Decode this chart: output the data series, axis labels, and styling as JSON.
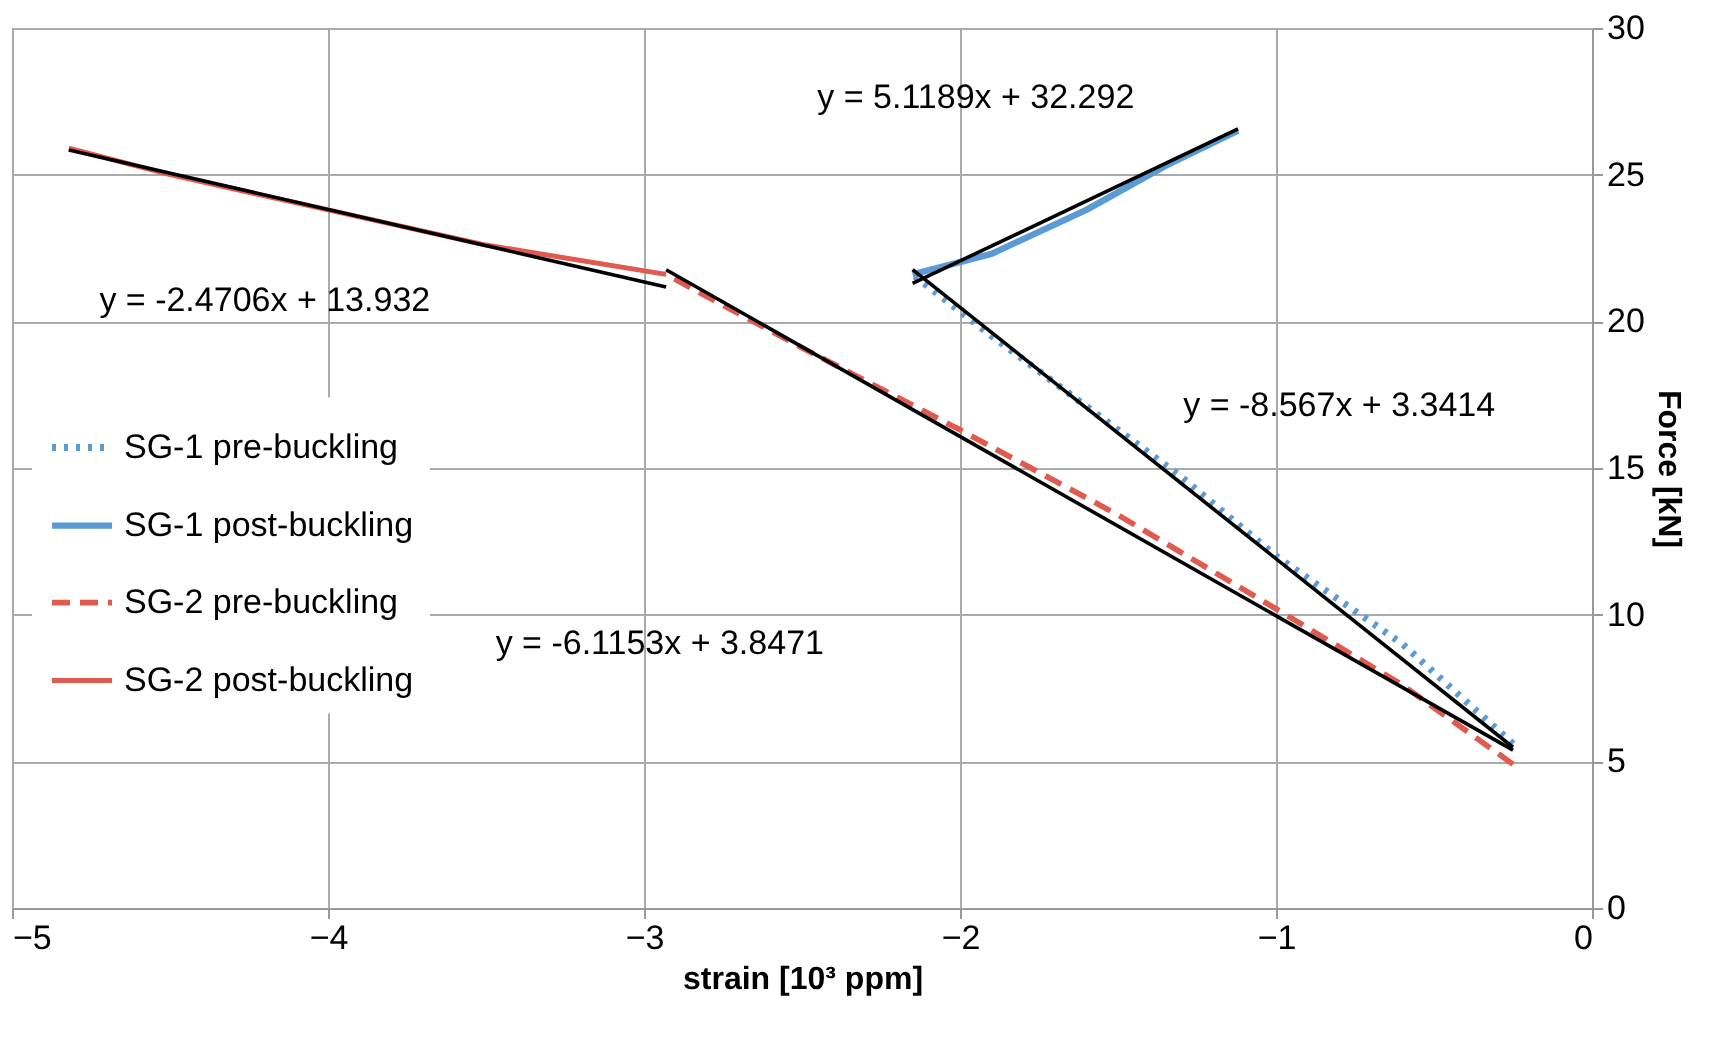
{
  "chart_data": {
    "type": "line",
    "xlabel": "strain [10³ ppm]",
    "ylabel": "Force [kN]",
    "xlim": [
      -5,
      0
    ],
    "xticks": [
      -5,
      -4,
      -3,
      -2,
      -1,
      0
    ],
    "ylim": [
      0,
      30
    ],
    "yticks": [
      0,
      5,
      10,
      15,
      20,
      25,
      30
    ],
    "grid": true,
    "legend": "left",
    "marker": "none",
    "series": [
      {
        "name": "SG-1 pre-buckling",
        "color": "#5b9bd5",
        "line_style": "dotted",
        "x": [
          -0.25,
          -0.6,
          -1.0,
          -1.3,
          -1.6,
          -1.9,
          -2.15
        ],
        "values": [
          5.6,
          9.0,
          12.0,
          14.7,
          17.1,
          19.5,
          21.6
        ]
      },
      {
        "name": "SG-1 post-buckling",
        "color": "#5b9bd5",
        "line_style": "solid",
        "x": [
          -2.15,
          -1.9,
          -1.6,
          -1.35,
          -1.12
        ],
        "values": [
          21.6,
          22.3,
          23.8,
          25.3,
          26.5
        ]
      },
      {
        "name": "SG-2 pre-buckling",
        "color": "#e05a50",
        "line_style": "dashed",
        "x": [
          -0.25,
          -0.6,
          -1.0,
          -1.5,
          -2.0,
          -2.5,
          -2.93
        ],
        "values": [
          4.9,
          7.6,
          10.2,
          13.4,
          16.3,
          19.1,
          21.6
        ]
      },
      {
        "name": "SG-2 post-buckling",
        "color": "#e05a50",
        "line_style": "solid",
        "x": [
          -2.93,
          -3.5,
          -4.0,
          -4.5,
          -4.82
        ],
        "values": [
          21.6,
          22.6,
          23.8,
          25.0,
          25.9
        ]
      },
      {
        "type": "line",
        "color": "#000000",
        "line_style": "solid",
        "x": [
          -4.82,
          -2.93
        ],
        "values": [
          25.84,
          21.17
        ]
      },
      {
        "type": "line",
        "color": "#000000",
        "line_style": "solid",
        "x": [
          -2.15,
          -1.12
        ],
        "values": [
          21.29,
          26.56
        ]
      },
      {
        "type": "line",
        "color": "#000000",
        "line_style": "solid",
        "x": [
          -2.15,
          -0.25
        ],
        "values": [
          21.76,
          5.48
        ]
      },
      {
        "type": "line",
        "color": "#000000",
        "line_style": "solid",
        "x": [
          -2.93,
          -0.25
        ],
        "values": [
          21.76,
          5.38
        ]
      }
    ],
    "annotations": [
      "y = 5.1189x + 32.292",
      "y = -2.4706x + 13.932",
      "y = -8.567x + 3.3414",
      "y = -6.1153x + 3.8471"
    ]
  }
}
